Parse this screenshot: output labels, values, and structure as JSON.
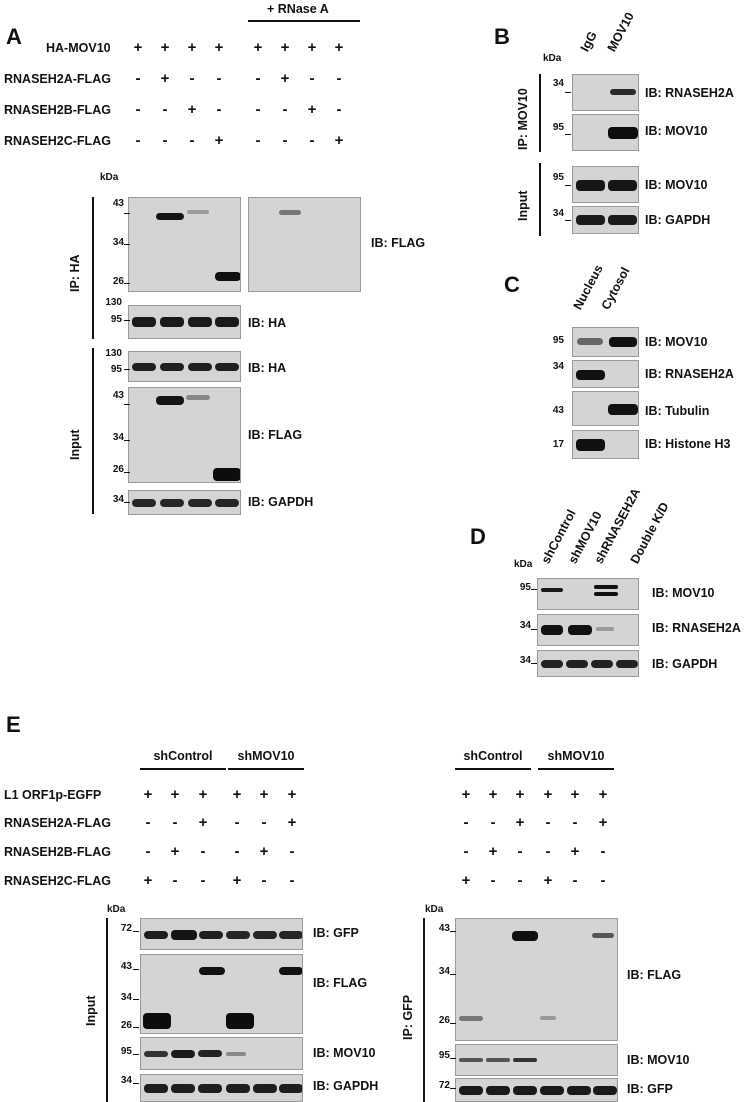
{
  "panels": {
    "A": "A",
    "B": "B",
    "C": "C",
    "D": "D",
    "E": "E"
  },
  "kda": "kDa",
  "A": {
    "rnase_header": "+ RNase A",
    "rows": [
      {
        "label": "HA-MOV10",
        "signs": [
          "+",
          "+",
          "+",
          "+",
          "+",
          "+",
          "+",
          "+"
        ]
      },
      {
        "label": "RNASEH2A-FLAG",
        "signs": [
          "-",
          "+",
          "-",
          "-",
          "-",
          "+",
          "-",
          "-"
        ]
      },
      {
        "label": "RNASEH2B-FLAG",
        "signs": [
          "-",
          "-",
          "+",
          "-",
          "-",
          "-",
          "+",
          "-"
        ]
      },
      {
        "label": "RNASEH2C-FLAG",
        "signs": [
          "-",
          "-",
          "-",
          "+",
          "-",
          "-",
          "-",
          "+"
        ]
      }
    ],
    "side_ip": "IP: HA",
    "side_input": "Input",
    "blots": [
      {
        "ib": "IB: FLAG",
        "mw": [
          "43",
          "34",
          "26"
        ]
      },
      {
        "ib": "IB: HA",
        "mw": [
          "130",
          "95"
        ]
      },
      {
        "ib": "IB: HA",
        "mw": [
          "130",
          "95"
        ]
      },
      {
        "ib": "IB: FLAG",
        "mw": [
          "43",
          "34",
          "26"
        ]
      },
      {
        "ib": "IB: GAPDH",
        "mw": [
          "34"
        ]
      }
    ]
  },
  "B": {
    "columns": [
      "IgG",
      "MOV10"
    ],
    "side_ip": "IP: MOV10",
    "side_input": "Input",
    "blots": [
      {
        "ib": "IB: RNASEH2A",
        "mw": "34"
      },
      {
        "ib": "IB: MOV10",
        "mw": "95"
      },
      {
        "ib": "IB: MOV10",
        "mw": "95"
      },
      {
        "ib": "IB: GAPDH",
        "mw": "34"
      }
    ]
  },
  "C": {
    "columns": [
      "Nucleus",
      "Cytosol"
    ],
    "blots": [
      {
        "ib": "IB: MOV10",
        "mw": "95"
      },
      {
        "ib": "IB: RNASEH2A",
        "mw": "34"
      },
      {
        "ib": "IB: Tubulin",
        "mw": "43"
      },
      {
        "ib": "IB: Histone H3",
        "mw": "17"
      }
    ]
  },
  "D": {
    "columns": [
      "shControl",
      "shMOV10",
      "shRNASEH2A",
      "Double K/D"
    ],
    "blots": [
      {
        "ib": "IB: MOV10",
        "mw": "95"
      },
      {
        "ib": "IB: RNASEH2A",
        "mw": "34"
      },
      {
        "ib": "IB: GAPDH",
        "mw": "34"
      }
    ]
  },
  "E": {
    "groups": [
      "shControl",
      "shMOV10"
    ],
    "rows": [
      {
        "label": "L1 ORF1p-EGFP",
        "signs": [
          "+",
          "+",
          "+",
          "+",
          "+",
          "+"
        ]
      },
      {
        "label": "RNASEH2A-FLAG",
        "signs": [
          "-",
          "-",
          "+",
          "-",
          "-",
          "+"
        ]
      },
      {
        "label": "RNASEH2B-FLAG",
        "signs": [
          "-",
          "+",
          "-",
          "-",
          "+",
          "-"
        ]
      },
      {
        "label": "RNASEH2C-FLAG",
        "signs": [
          "+",
          "-",
          "-",
          "+",
          "-",
          "-"
        ]
      }
    ],
    "side_input": "Input",
    "side_ip": "IP: GFP",
    "left_blots": [
      {
        "ib": "IB: GFP",
        "mw": [
          "72"
        ]
      },
      {
        "ib": "IB: FLAG",
        "mw": [
          "43",
          "34",
          "26"
        ]
      },
      {
        "ib": "IB: MOV10",
        "mw": [
          "95"
        ]
      },
      {
        "ib": "IB: GAPDH",
        "mw": [
          "34"
        ]
      }
    ],
    "right_blots": [
      {
        "ib": "IB: FLAG",
        "mw": [
          "43",
          "34",
          "26"
        ]
      },
      {
        "ib": "IB: MOV10",
        "mw": [
          "95"
        ]
      },
      {
        "ib": "IB: GFP",
        "mw": [
          "72"
        ]
      }
    ]
  }
}
